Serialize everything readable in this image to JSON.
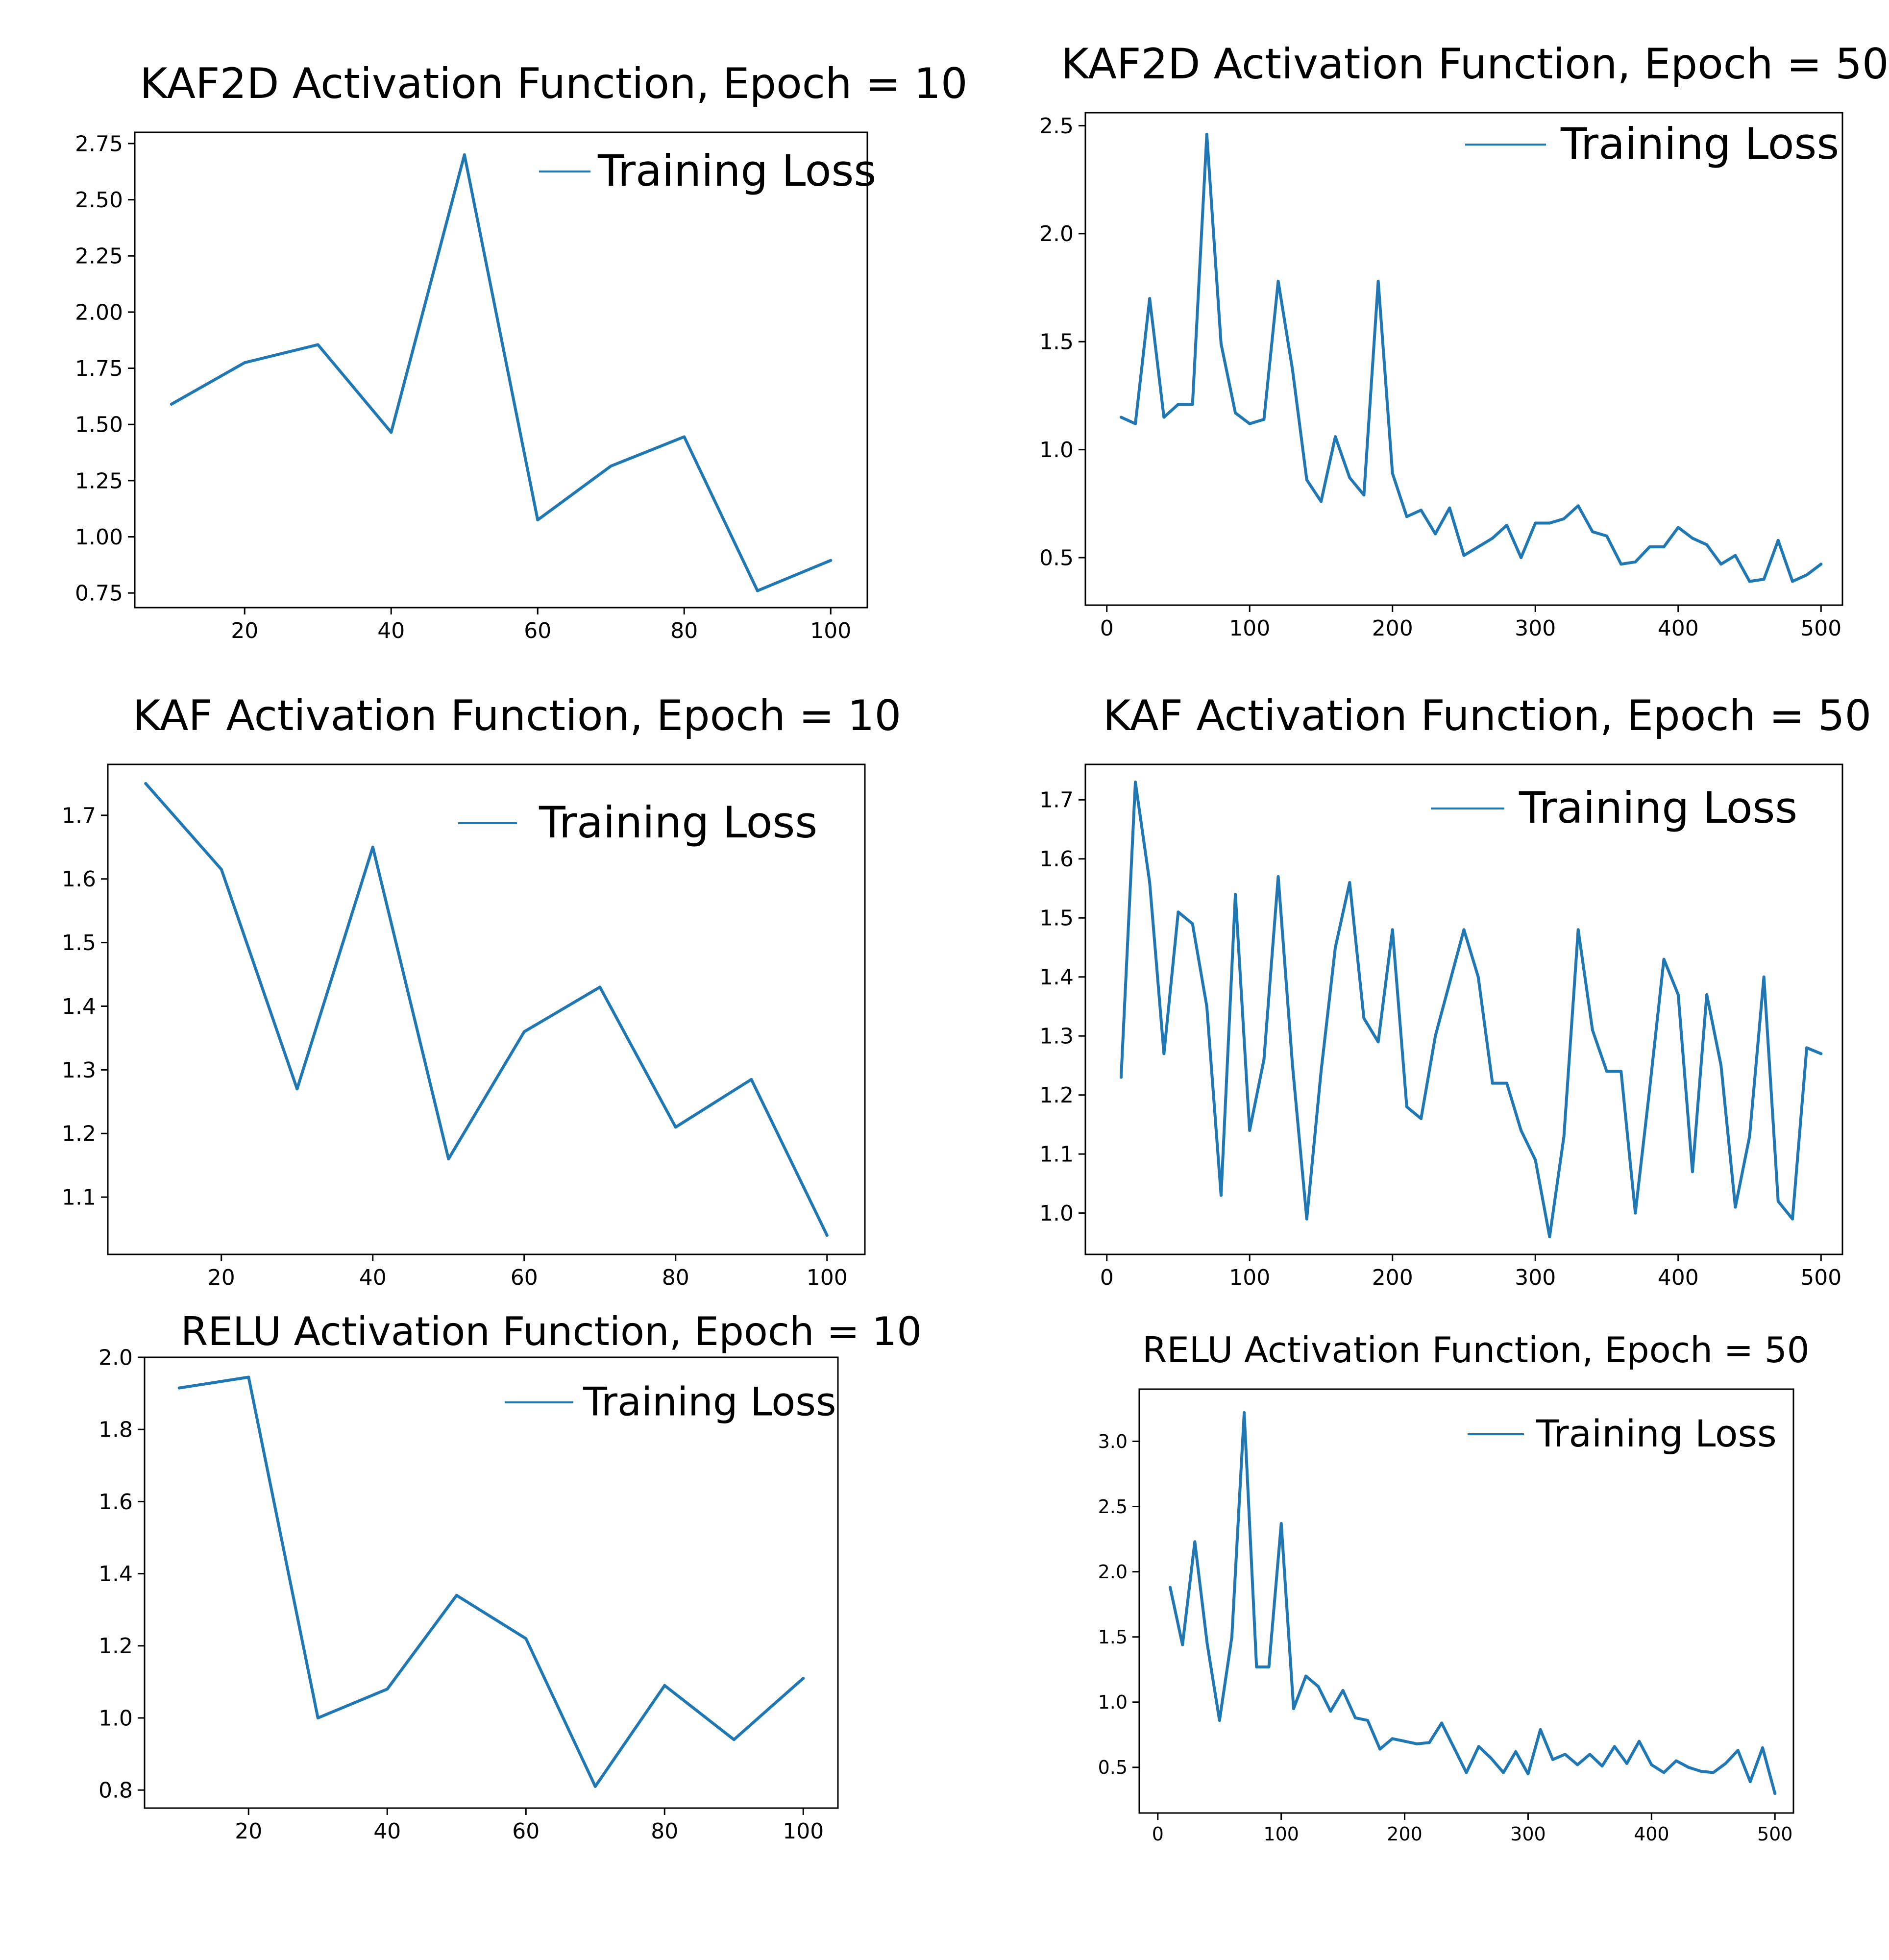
{
  "line_color": "#1f77b4",
  "chart_data": [
    {
      "type": "line",
      "title": "KAF2D Activation Function, Epoch = 10",
      "xlabel": "",
      "ylabel": "",
      "x": [
        10,
        20,
        30,
        40,
        50,
        60,
        70,
        80,
        90,
        100
      ],
      "series": [
        {
          "name": "Training Loss",
          "values": [
            1.59,
            1.775,
            1.855,
            1.465,
            2.7,
            1.075,
            1.315,
            1.445,
            0.76,
            0.895
          ]
        }
      ],
      "xlim": [
        5,
        105
      ],
      "ylim": [
        0.685,
        2.8
      ],
      "xticks": [
        20,
        40,
        60,
        80,
        100
      ],
      "yticks": [
        0.75,
        1.0,
        1.25,
        1.5,
        1.75,
        2.0,
        2.25,
        2.5,
        2.75
      ],
      "xtick_labels": [
        "20",
        "40",
        "60",
        "80",
        "100"
      ],
      "ytick_labels": [
        "0.75",
        "1.00",
        "1.25",
        "1.50",
        "1.75",
        "2.00",
        "2.25",
        "2.50",
        "2.75"
      ],
      "legend": "top-right"
    },
    {
      "type": "line",
      "title": "KAF2D Activation Function, Epoch = 50",
      "xlabel": "",
      "ylabel": "",
      "x": [
        10,
        20,
        30,
        40,
        50,
        60,
        70,
        80,
        90,
        100,
        110,
        120,
        130,
        140,
        150,
        160,
        170,
        180,
        190,
        200,
        210,
        220,
        230,
        240,
        250,
        260,
        270,
        280,
        290,
        300,
        310,
        320,
        330,
        340,
        350,
        360,
        370,
        380,
        390,
        400,
        410,
        420,
        430,
        440,
        450,
        460,
        470,
        480,
        490,
        500
      ],
      "series": [
        {
          "name": "Training Loss",
          "values": [
            1.15,
            1.12,
            1.7,
            1.15,
            1.21,
            1.21,
            2.46,
            1.49,
            1.17,
            1.12,
            1.14,
            1.78,
            1.37,
            0.86,
            0.76,
            1.06,
            0.87,
            0.79,
            1.78,
            0.89,
            0.69,
            0.72,
            0.61,
            0.73,
            0.51,
            0.55,
            0.59,
            0.65,
            0.5,
            0.66,
            0.66,
            0.68,
            0.74,
            0.62,
            0.6,
            0.47,
            0.48,
            0.55,
            0.55,
            0.64,
            0.59,
            0.56,
            0.47,
            0.51,
            0.39,
            0.4,
            0.58,
            0.39,
            0.42,
            0.47
          ]
        }
      ],
      "xlim": [
        -15,
        515
      ],
      "ylim": [
        0.28,
        2.56
      ],
      "xticks": [
        0,
        100,
        200,
        300,
        400,
        500
      ],
      "yticks": [
        0.5,
        1.0,
        1.5,
        2.0,
        2.5
      ],
      "xtick_labels": [
        "0",
        "100",
        "200",
        "300",
        "400",
        "500"
      ],
      "ytick_labels": [
        "0.5",
        "1.0",
        "1.5",
        "2.0",
        "2.5"
      ],
      "legend": "top-right"
    },
    {
      "type": "line",
      "title": "KAF Activation Function, Epoch = 10",
      "xlabel": "",
      "ylabel": "",
      "x": [
        10,
        20,
        30,
        40,
        50,
        60,
        70,
        80,
        90,
        100
      ],
      "series": [
        {
          "name": "Training Loss",
          "values": [
            1.75,
            1.615,
            1.27,
            1.65,
            1.16,
            1.36,
            1.43,
            1.21,
            1.285,
            1.04
          ]
        }
      ],
      "xlim": [
        5,
        105
      ],
      "ylim": [
        1.01,
        1.78
      ],
      "xticks": [
        20,
        40,
        60,
        80,
        100
      ],
      "yticks": [
        1.1,
        1.2,
        1.3,
        1.4,
        1.5,
        1.6,
        1.7
      ],
      "xtick_labels": [
        "20",
        "40",
        "60",
        "80",
        "100"
      ],
      "ytick_labels": [
        "1.1",
        "1.2",
        "1.3",
        "1.4",
        "1.5",
        "1.6",
        "1.7"
      ],
      "legend": "top-right"
    },
    {
      "type": "line",
      "title": "KAF Activation Function, Epoch = 50",
      "xlabel": "",
      "ylabel": "",
      "x": [
        10,
        20,
        30,
        40,
        50,
        60,
        70,
        80,
        90,
        100,
        110,
        120,
        130,
        140,
        150,
        160,
        170,
        180,
        190,
        200,
        210,
        220,
        230,
        240,
        250,
        260,
        270,
        280,
        290,
        300,
        310,
        320,
        330,
        340,
        350,
        360,
        370,
        380,
        390,
        400,
        410,
        420,
        430,
        440,
        450,
        460,
        470,
        480,
        490,
        500
      ],
      "series": [
        {
          "name": "Training Loss",
          "values": [
            1.23,
            1.73,
            1.56,
            1.27,
            1.51,
            1.49,
            1.35,
            1.03,
            1.54,
            1.14,
            1.26,
            1.57,
            1.25,
            0.99,
            1.24,
            1.45,
            1.56,
            1.33,
            1.29,
            1.48,
            1.18,
            1.16,
            1.3,
            1.39,
            1.48,
            1.4,
            1.22,
            1.22,
            1.14,
            1.09,
            0.96,
            1.13,
            1.48,
            1.31,
            1.24,
            1.24,
            1.0,
            1.21,
            1.43,
            1.37,
            1.07,
            1.37,
            1.25,
            1.01,
            1.13,
            1.4,
            1.02,
            0.99,
            1.28,
            1.27
          ]
        }
      ],
      "xlim": [
        -15,
        515
      ],
      "ylim": [
        0.93,
        1.76
      ],
      "xticks": [
        0,
        100,
        200,
        300,
        400,
        500
      ],
      "yticks": [
        1.0,
        1.1,
        1.2,
        1.3,
        1.4,
        1.5,
        1.6,
        1.7
      ],
      "xtick_labels": [
        "0",
        "100",
        "200",
        "300",
        "400",
        "500"
      ],
      "ytick_labels": [
        "1.0",
        "1.1",
        "1.2",
        "1.3",
        "1.4",
        "1.5",
        "1.6",
        "1.7"
      ],
      "legend": "top-right"
    },
    {
      "type": "line",
      "title": "RELU Activation Function, Epoch = 10",
      "xlabel": "",
      "ylabel": "",
      "x": [
        10,
        20,
        30,
        40,
        50,
        60,
        70,
        80,
        90,
        100
      ],
      "series": [
        {
          "name": "Training Loss",
          "values": [
            1.915,
            1.945,
            1.0,
            1.08,
            1.34,
            1.22,
            0.81,
            1.09,
            0.94,
            1.11
          ]
        }
      ],
      "xlim": [
        5,
        105
      ],
      "ylim": [
        0.75,
        2.0
      ],
      "xticks": [
        20,
        40,
        60,
        80,
        100
      ],
      "yticks": [
        0.8,
        1.0,
        1.2,
        1.4,
        1.6,
        1.8,
        2.0
      ],
      "xtick_labels": [
        "20",
        "40",
        "60",
        "80",
        "100"
      ],
      "ytick_labels": [
        "0.8",
        "1.0",
        "1.2",
        "1.4",
        "1.6",
        "1.8",
        "2.0"
      ],
      "legend": "top-right"
    },
    {
      "type": "line",
      "title": "RELU Activation Function, Epoch = 50",
      "xlabel": "",
      "ylabel": "",
      "x": [
        10,
        20,
        30,
        40,
        50,
        60,
        70,
        80,
        90,
        100,
        110,
        120,
        130,
        140,
        150,
        160,
        170,
        180,
        190,
        200,
        210,
        220,
        230,
        240,
        250,
        260,
        270,
        280,
        290,
        300,
        310,
        320,
        330,
        340,
        350,
        360,
        370,
        380,
        390,
        400,
        410,
        420,
        430,
        440,
        450,
        460,
        470,
        480,
        490,
        500
      ],
      "series": [
        {
          "name": "Training Loss",
          "values": [
            1.88,
            1.44,
            2.23,
            1.45,
            0.86,
            1.5,
            3.22,
            1.27,
            1.27,
            2.37,
            0.95,
            1.2,
            1.12,
            0.93,
            1.09,
            0.88,
            0.86,
            0.64,
            0.72,
            0.7,
            0.68,
            0.69,
            0.84,
            0.65,
            0.46,
            0.66,
            0.57,
            0.46,
            0.62,
            0.45,
            0.79,
            0.56,
            0.6,
            0.52,
            0.6,
            0.51,
            0.66,
            0.53,
            0.7,
            0.52,
            0.46,
            0.55,
            0.5,
            0.47,
            0.46,
            0.53,
            0.63,
            0.39,
            0.65,
            0.3
          ]
        }
      ],
      "xlim": [
        -15,
        515
      ],
      "ylim": [
        0.15,
        3.4
      ],
      "xticks": [
        0,
        100,
        200,
        300,
        400,
        500
      ],
      "yticks": [
        0.5,
        1.0,
        1.5,
        2.0,
        2.5,
        3.0
      ],
      "xtick_labels": [
        "0",
        "100",
        "200",
        "300",
        "400",
        "500"
      ],
      "ytick_labels": [
        "0.5",
        "1.0",
        "1.5",
        "2.0",
        "2.5",
        "3.0"
      ],
      "legend": "top-right"
    }
  ]
}
